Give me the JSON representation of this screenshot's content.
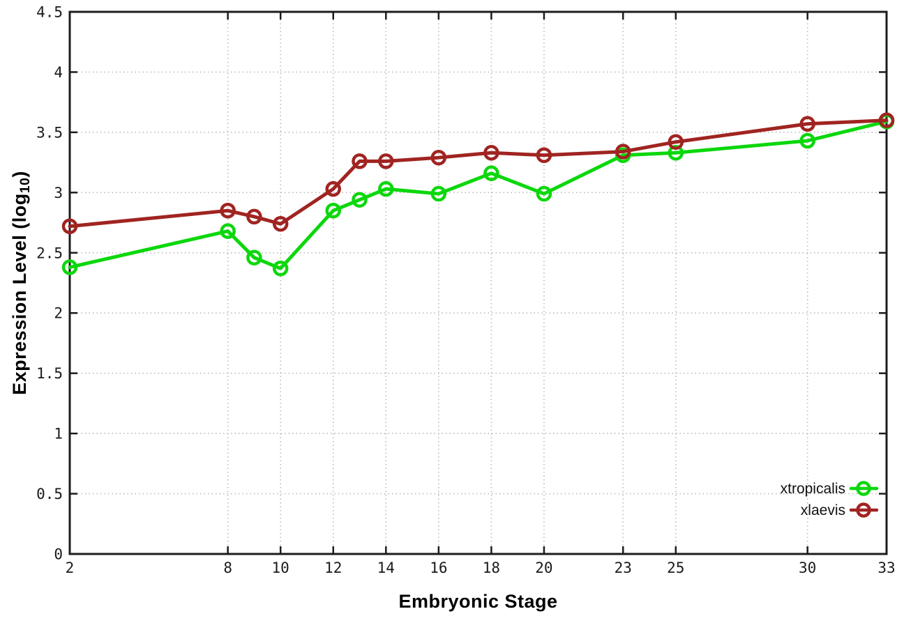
{
  "page": {
    "background": "#ffffff"
  },
  "chart_data": {
    "type": "line",
    "title": "",
    "xlabel": "Embryonic Stage",
    "ylabel": "Expression Level (log10)",
    "ylabel_parts": {
      "main": "Expression Level (log",
      "sub": "10",
      "end": ")"
    },
    "x": [
      2,
      8,
      9,
      10,
      12,
      13,
      14,
      16,
      18,
      20,
      23,
      25,
      30,
      33
    ],
    "series": [
      {
        "name": "xtropicalis",
        "color": "#0cd70c",
        "marker": "open-circle",
        "values": [
          2.38,
          2.68,
          2.46,
          2.37,
          2.85,
          2.94,
          3.03,
          2.99,
          3.16,
          2.99,
          3.31,
          3.33,
          3.43,
          3.59
        ]
      },
      {
        "name": "xlaevis",
        "color": "#a02421",
        "marker": "open-circle",
        "values": [
          2.72,
          2.85,
          2.8,
          2.74,
          3.03,
          3.26,
          3.26,
          3.29,
          3.33,
          3.31,
          3.34,
          3.42,
          3.57,
          3.6
        ]
      }
    ],
    "xlim": [
      2,
      33
    ],
    "ylim": [
      0,
      4.5
    ],
    "x_ticks": [
      2,
      8,
      10,
      12,
      14,
      16,
      18,
      20,
      23,
      25,
      30,
      33
    ],
    "y_ticks": [
      0,
      0.5,
      1,
      1.5,
      2,
      2.5,
      3,
      3.5,
      4,
      4.5
    ],
    "grid": "dotted",
    "legend_position": "inside-bottom-right"
  },
  "style": {
    "axis_color": "#1c1c1c",
    "grid_color": "#b9b9b9",
    "tick_label_color": "#1a1a1a",
    "legend_text_color": "#111111"
  }
}
